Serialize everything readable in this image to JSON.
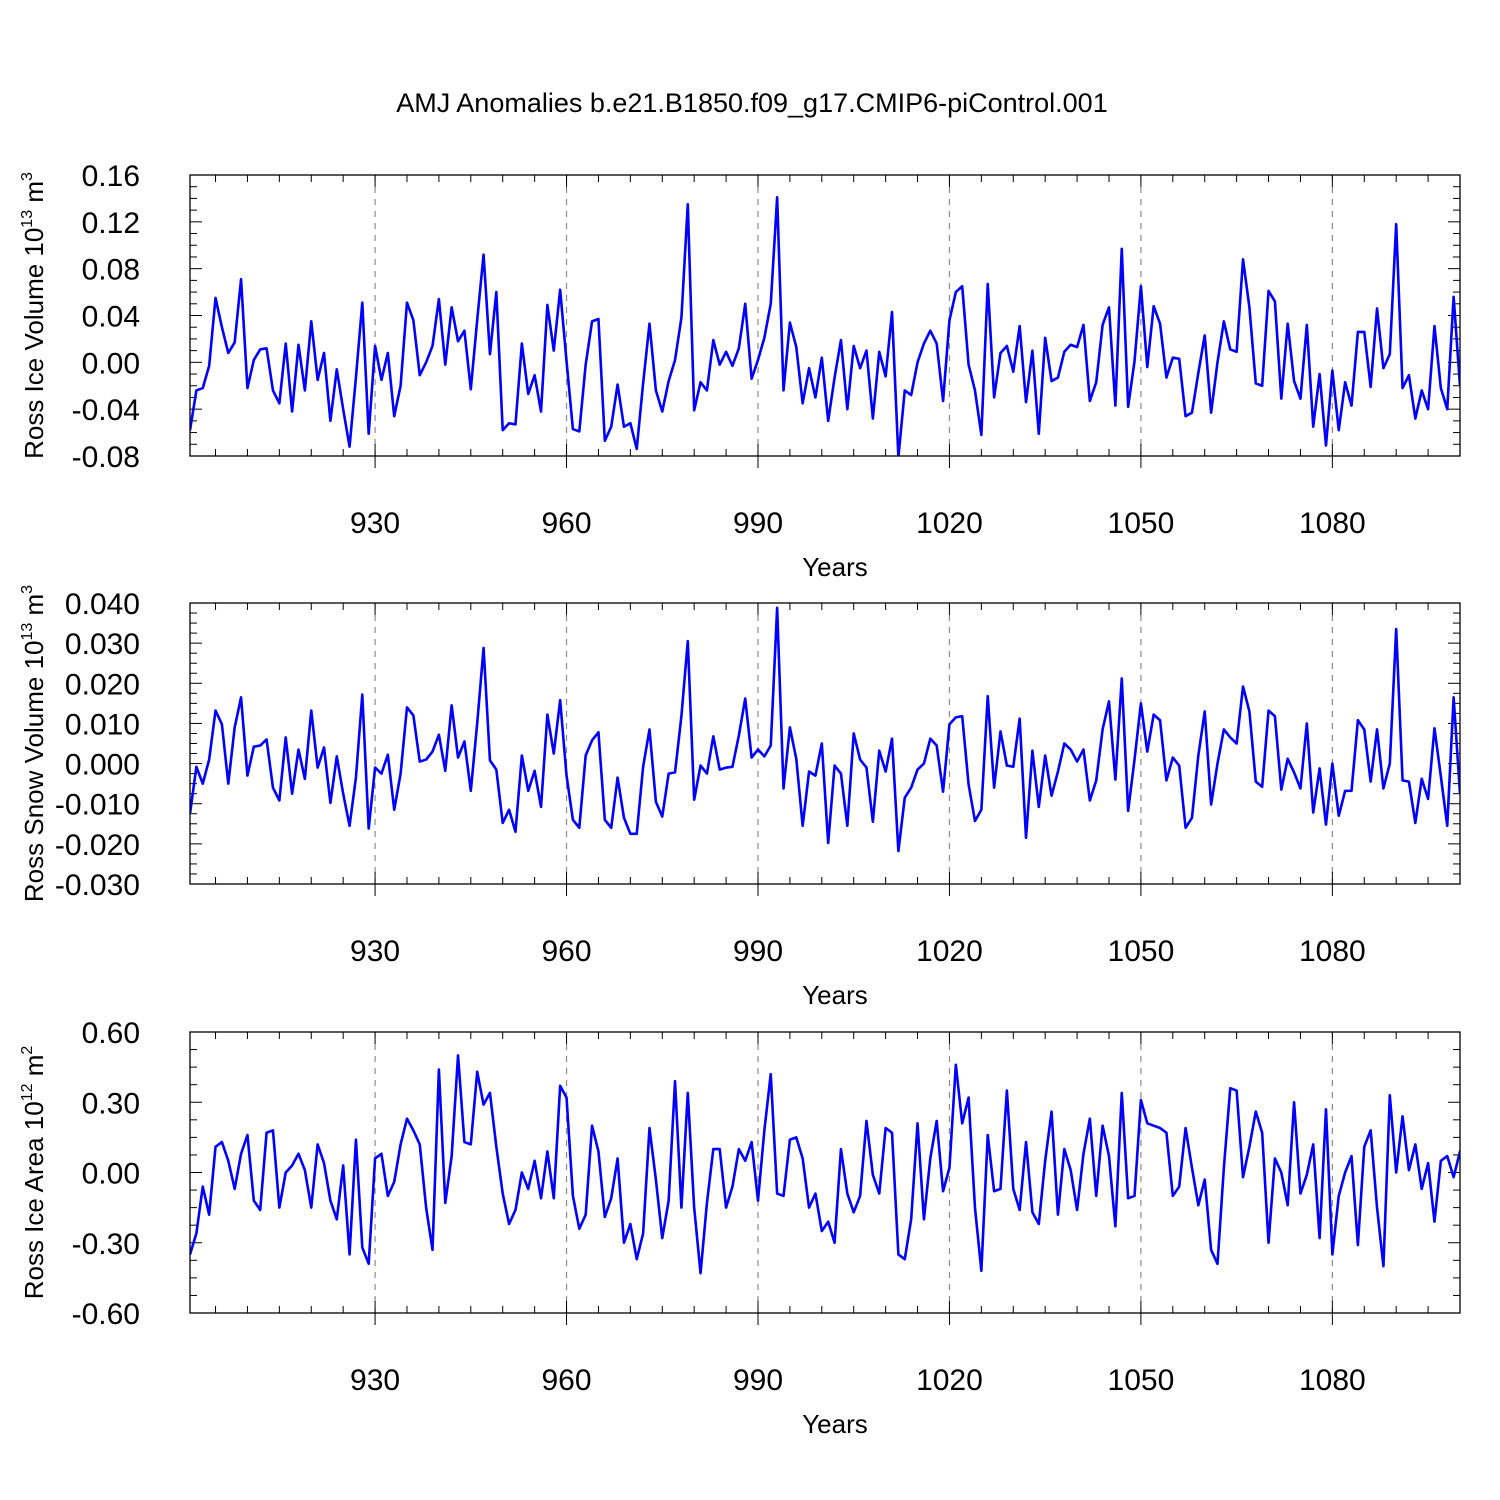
{
  "title": "AMJ Anomalies b.e21.B1850.f09_g17.CMIP6-piControl.001",
  "chart_data": [
    {
      "type": "line",
      "ylabel": "Ross Ice Volume 10",
      "ylabel_sup": "13",
      "ylabel_unit": " m",
      "ylabel_unit_sup": "3",
      "xlabel": "Years",
      "xlim": [
        901,
        1100
      ],
      "ylim": [
        -0.08,
        0.16
      ],
      "yticks": [
        -0.08,
        -0.04,
        0.0,
        0.04,
        0.08,
        0.12,
        0.16
      ],
      "ytick_labels": [
        "-0.08",
        "-0.04",
        "0.00",
        "0.04",
        "0.08",
        "0.12",
        "0.16"
      ],
      "xticks": [
        930,
        960,
        990,
        1020,
        1050,
        1080
      ],
      "xtick_labels": [
        "930",
        "960",
        "990",
        "1020",
        "1050",
        "1080"
      ],
      "grid": "vertical dashed at major x ticks",
      "series_color": "#0000ff",
      "x_start": 901,
      "values": [
        -0.058,
        -0.024,
        -0.022,
        -0.003,
        0.055,
        0.03,
        0.008,
        0.017,
        0.071,
        -0.022,
        0.002,
        0.011,
        0.012,
        -0.024,
        -0.035,
        0.016,
        -0.042,
        0.015,
        -0.024,
        0.035,
        -0.015,
        0.008,
        -0.05,
        -0.006,
        -0.04,
        -0.072,
        -0.013,
        0.051,
        -0.061,
        0.014,
        -0.015,
        0.008,
        -0.046,
        -0.02,
        0.051,
        0.036,
        -0.011,
        0.0,
        0.014,
        0.054,
        -0.002,
        0.047,
        0.018,
        0.027,
        -0.023,
        0.036,
        0.092,
        0.007,
        0.06,
        -0.058,
        -0.052,
        -0.053,
        0.016,
        -0.027,
        -0.011,
        -0.042,
        0.049,
        0.01,
        0.062,
        0.001,
        -0.057,
        -0.059,
        -0.002,
        0.035,
        0.037,
        -0.067,
        -0.055,
        -0.019,
        -0.055,
        -0.052,
        -0.074,
        -0.018,
        0.033,
        -0.024,
        -0.042,
        -0.016,
        0.002,
        0.038,
        0.135,
        -0.041,
        -0.017,
        -0.024,
        0.019,
        -0.002,
        0.009,
        -0.003,
        0.012,
        0.05,
        -0.014,
        0.002,
        0.021,
        0.05,
        0.141,
        -0.024,
        0.034,
        0.013,
        -0.035,
        -0.005,
        -0.03,
        0.004,
        -0.05,
        -0.013,
        0.019,
        -0.04,
        0.014,
        -0.005,
        0.01,
        -0.048,
        0.009,
        -0.012,
        0.043,
        -0.081,
        -0.024,
        -0.028,
        0.0,
        0.016,
        0.027,
        0.016,
        -0.033,
        0.036,
        0.06,
        0.065,
        -0.002,
        -0.024,
        -0.062,
        0.067,
        -0.03,
        0.008,
        0.014,
        -0.008,
        0.031,
        -0.034,
        0.01,
        -0.061,
        0.021,
        -0.016,
        -0.013,
        0.009,
        0.015,
        0.013,
        0.032,
        -0.033,
        -0.017,
        0.032,
        0.047,
        -0.037,
        0.097,
        -0.038,
        0.001,
        0.065,
        -0.004,
        0.048,
        0.033,
        -0.013,
        0.004,
        0.003,
        -0.046,
        -0.043,
        -0.009,
        0.023,
        -0.043,
        0.0,
        0.035,
        0.011,
        0.009,
        0.088,
        0.047,
        -0.018,
        -0.02,
        0.061,
        0.052,
        -0.031,
        0.033,
        -0.016,
        -0.031,
        0.032,
        -0.055,
        -0.01,
        -0.071,
        -0.007,
        -0.058,
        -0.017,
        -0.037,
        0.026,
        0.026,
        -0.021,
        0.046,
        -0.005,
        0.007,
        0.118,
        -0.022,
        -0.011,
        -0.048,
        -0.024,
        -0.04,
        0.031,
        -0.022,
        -0.04,
        0.056,
        -0.02
      ]
    },
    {
      "type": "line",
      "ylabel": "Ross Snow Volume 10",
      "ylabel_sup": "13",
      "ylabel_unit": " m",
      "ylabel_unit_sup": "3",
      "xlabel": "Years",
      "xlim": [
        901,
        1100
      ],
      "ylim": [
        -0.03,
        0.04
      ],
      "yticks": [
        -0.03,
        -0.02,
        -0.01,
        0.0,
        0.01,
        0.02,
        0.03,
        0.04
      ],
      "ytick_labels": [
        "-0.030",
        "-0.020",
        "-0.010",
        "0.000",
        "0.010",
        "0.020",
        "0.030",
        "0.040"
      ],
      "xticks": [
        930,
        960,
        990,
        1020,
        1050,
        1080
      ],
      "xtick_labels": [
        "930",
        "960",
        "990",
        "1020",
        "1050",
        "1080"
      ],
      "grid": "vertical dashed at major x ticks",
      "series_color": "#0000ff",
      "x_start": 901,
      "values": [
        -0.0125,
        -0.0008,
        -0.005,
        0.001,
        0.0132,
        0.0098,
        -0.005,
        0.009,
        0.0165,
        -0.003,
        0.0042,
        0.0045,
        0.006,
        -0.006,
        -0.0092,
        0.0065,
        -0.0075,
        0.0035,
        -0.0038,
        0.0132,
        -0.001,
        0.004,
        -0.0098,
        0.0018,
        -0.0075,
        -0.0155,
        -0.0035,
        0.0172,
        -0.0162,
        -0.001,
        -0.0025,
        0.0022,
        -0.0115,
        -0.0025,
        0.014,
        0.012,
        0.0005,
        0.001,
        0.003,
        0.0072,
        -0.0018,
        0.0145,
        0.0015,
        0.0055,
        -0.0068,
        0.01,
        0.0288,
        0.0008,
        -0.0015,
        -0.0148,
        -0.0115,
        -0.017,
        0.002,
        -0.0068,
        -0.0018,
        -0.0108,
        0.0122,
        0.0025,
        0.0158,
        -0.003,
        -0.014,
        -0.016,
        0.002,
        0.0058,
        0.0078,
        -0.014,
        -0.016,
        -0.0035,
        -0.0135,
        -0.0175,
        -0.0175,
        -0.0008,
        0.0085,
        -0.0095,
        -0.0132,
        -0.0025,
        -0.0022,
        0.0118,
        0.0305,
        -0.009,
        -0.0005,
        -0.0025,
        0.0068,
        -0.0015,
        -0.001,
        -0.0008,
        0.007,
        0.0162,
        0.0015,
        0.0035,
        0.0018,
        0.0045,
        0.0388,
        -0.0062,
        0.009,
        0.0012,
        -0.0155,
        -0.002,
        -0.003,
        0.005,
        -0.0198,
        -0.0005,
        -0.0025,
        -0.0155,
        0.0075,
        0.001,
        -0.001,
        -0.0145,
        0.0032,
        -0.002,
        0.0062,
        -0.0218,
        -0.0085,
        -0.006,
        -0.0015,
        0.0,
        0.0062,
        0.0045,
        -0.007,
        0.0098,
        0.0115,
        0.0118,
        -0.0052,
        -0.0143,
        -0.0115,
        0.0168,
        -0.006,
        0.008,
        -0.0005,
        -0.0008,
        0.0112,
        -0.0185,
        0.0032,
        -0.0108,
        0.002,
        -0.008,
        -0.002,
        0.005,
        0.0035,
        0.0005,
        0.0035,
        -0.0092,
        -0.0042,
        0.0085,
        0.0155,
        -0.004,
        0.0212,
        -0.0118,
        0.001,
        0.015,
        0.003,
        0.0122,
        0.0108,
        -0.0042,
        0.0015,
        -0.0005,
        -0.016,
        -0.0135,
        0.002,
        0.013,
        -0.0102,
        0.0,
        0.0085,
        0.0065,
        0.005,
        0.0192,
        0.013,
        -0.0045,
        -0.0058,
        0.0132,
        0.0118,
        -0.0065,
        0.0012,
        -0.0022,
        -0.0062,
        0.01,
        -0.0122,
        -0.0012,
        -0.0152,
        0.0,
        -0.013,
        -0.0068,
        -0.0068,
        0.0108,
        0.0085,
        -0.0045,
        0.0085,
        -0.0062,
        0.0,
        0.0335,
        -0.0042,
        -0.0045,
        -0.0148,
        -0.0038,
        -0.0088,
        0.0088,
        -0.0032,
        -0.0155,
        0.0165,
        -0.0075
      ]
    },
    {
      "type": "line",
      "ylabel": "Ross Ice Area 10",
      "ylabel_sup": "12",
      "ylabel_unit": " m",
      "ylabel_unit_sup": "2",
      "xlabel": "Years",
      "xlim": [
        901,
        1100
      ],
      "ylim": [
        -0.6,
        0.6
      ],
      "yticks": [
        -0.6,
        -0.3,
        0.0,
        0.3,
        0.6
      ],
      "ytick_labels": [
        "-0.60",
        "-0.30",
        "0.00",
        "0.30",
        "0.60"
      ],
      "xticks": [
        930,
        960,
        990,
        1020,
        1050,
        1080
      ],
      "xtick_labels": [
        "930",
        "960",
        "990",
        "1020",
        "1050",
        "1080"
      ],
      "grid": "vertical dashed at major x ticks",
      "series_color": "#0000ff",
      "x_start": 901,
      "values": [
        -0.35,
        -0.26,
        -0.06,
        -0.18,
        0.11,
        0.13,
        0.05,
        -0.07,
        0.08,
        0.16,
        -0.12,
        -0.16,
        0.17,
        0.18,
        -0.15,
        0.0,
        0.03,
        0.08,
        0.01,
        -0.15,
        0.12,
        0.04,
        -0.12,
        -0.2,
        0.03,
        -0.35,
        0.14,
        -0.32,
        -0.39,
        0.06,
        0.08,
        -0.1,
        -0.04,
        0.12,
        0.23,
        0.18,
        0.12,
        -0.15,
        -0.33,
        0.44,
        -0.13,
        0.07,
        0.5,
        0.13,
        0.12,
        0.43,
        0.29,
        0.34,
        0.11,
        -0.09,
        -0.22,
        -0.16,
        0.0,
        -0.07,
        0.05,
        -0.11,
        0.09,
        -0.11,
        0.37,
        0.32,
        -0.1,
        -0.24,
        -0.18,
        0.2,
        0.09,
        -0.19,
        -0.11,
        0.06,
        -0.3,
        -0.22,
        -0.37,
        -0.26,
        0.19,
        -0.03,
        -0.28,
        -0.12,
        0.39,
        -0.15,
        0.34,
        -0.15,
        -0.43,
        -0.13,
        0.1,
        0.1,
        -0.15,
        -0.06,
        0.1,
        0.05,
        0.13,
        -0.12,
        0.18,
        0.42,
        -0.09,
        -0.1,
        0.14,
        0.15,
        0.06,
        -0.15,
        -0.09,
        -0.25,
        -0.21,
        -0.3,
        0.1,
        -0.09,
        -0.17,
        -0.1,
        0.22,
        -0.01,
        -0.09,
        0.19,
        0.17,
        -0.35,
        -0.37,
        -0.2,
        0.21,
        -0.2,
        0.06,
        0.22,
        -0.08,
        0.02,
        0.46,
        0.21,
        0.32,
        -0.15,
        -0.42,
        0.16,
        -0.08,
        -0.07,
        0.35,
        -0.07,
        -0.16,
        0.13,
        -0.17,
        -0.22,
        0.05,
        0.26,
        -0.18,
        0.1,
        0.01,
        -0.16,
        0.08,
        0.23,
        -0.1,
        0.2,
        0.07,
        -0.23,
        0.34,
        -0.11,
        -0.1,
        0.31,
        0.21,
        0.2,
        0.19,
        0.17,
        -0.1,
        -0.06,
        0.19,
        0.02,
        -0.14,
        -0.03,
        -0.33,
        -0.39,
        0.02,
        0.36,
        0.35,
        -0.02,
        0.11,
        0.26,
        0.17,
        -0.3,
        0.06,
        0.0,
        -0.14,
        0.3,
        -0.09,
        -0.01,
        0.12,
        -0.28,
        0.27,
        -0.35,
        -0.1,
        0.0,
        0.07,
        -0.31,
        0.11,
        0.18,
        -0.15,
        -0.4,
        0.33,
        0.0,
        0.24,
        0.01,
        0.12,
        -0.07,
        0.04,
        -0.21,
        0.05,
        0.07,
        -0.02,
        0.09,
        0.06
      ]
    }
  ]
}
